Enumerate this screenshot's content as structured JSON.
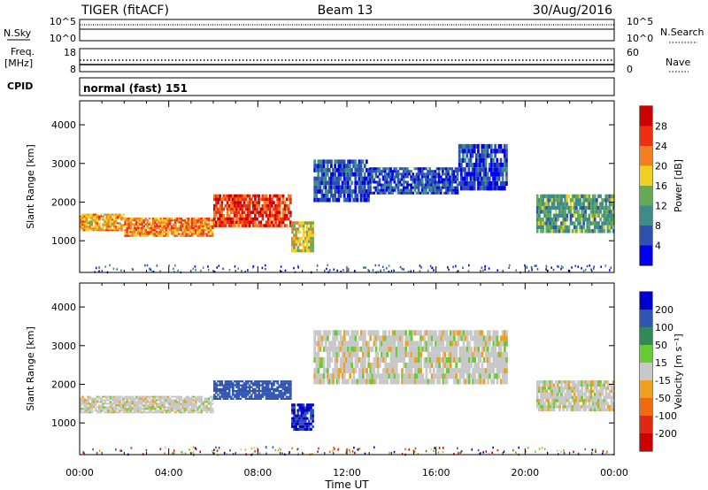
{
  "header": {
    "radar": "TIGER (fitACF)",
    "beam": "Beam 13",
    "date": "30/Aug/2016"
  },
  "strip_labels": {
    "nsky": "N.Sky",
    "nsearch": "N.Search",
    "freq_line1": "Freq.",
    "freq_line2": "[MHz]",
    "nave": "Nave",
    "cpid": "CPID",
    "cpid_value": "normal (fast) 151"
  },
  "noise_axis": {
    "left_ticks": [
      "10^5",
      "10^0"
    ],
    "right_ticks": [
      "10^5",
      "10^0"
    ]
  },
  "freq_axis": {
    "left_ticks": [
      "18",
      "8"
    ],
    "right_ticks": [
      "60",
      "0"
    ]
  },
  "chart_data": [
    {
      "type": "heatmap",
      "panel": "power",
      "ylabel": "Slant Range [km]",
      "xlabel": "",
      "x_ticks": [
        "00:00",
        "04:00",
        "08:00",
        "12:00",
        "16:00",
        "20:00",
        "00:00"
      ],
      "xlim_hours": [
        0,
        24
      ],
      "y_ticks": [
        1000,
        2000,
        3000,
        4000
      ],
      "ylim": [
        180,
        4620
      ],
      "colorbar": {
        "label": "Power [dB]",
        "ticks": [
          4,
          8,
          12,
          16,
          20,
          24,
          28
        ],
        "colors": [
          "#0000ee",
          "#3050b0",
          "#3c8c8c",
          "#66aa55",
          "#f0d020",
          "#f08020",
          "#ee3010",
          "#cc0000"
        ]
      },
      "bands": [
        {
          "from_h": 0.0,
          "to_h": 2.0,
          "range_km": [
            1250,
            1700
          ],
          "value_db": 20
        },
        {
          "from_h": 2.0,
          "to_h": 6.0,
          "range_km": [
            1100,
            1600
          ],
          "value_db": 22
        },
        {
          "from_h": 6.0,
          "to_h": 9.5,
          "range_km": [
            1350,
            2200
          ],
          "value_db": 26
        },
        {
          "from_h": 9.5,
          "to_h": 10.5,
          "range_km": [
            700,
            1500
          ],
          "value_db": 18
        },
        {
          "from_h": 10.5,
          "to_h": 13.0,
          "range_km": [
            2000,
            3100
          ],
          "value_db": 6
        },
        {
          "from_h": 13.0,
          "to_h": 17.0,
          "range_km": [
            2200,
            2900
          ],
          "value_db": 6
        },
        {
          "from_h": 17.0,
          "to_h": 19.2,
          "range_km": [
            2300,
            3500
          ],
          "value_db": 5
        },
        {
          "from_h": 20.5,
          "to_h": 24.0,
          "range_km": [
            1200,
            2200
          ],
          "value_db": 12
        }
      ]
    },
    {
      "type": "heatmap",
      "panel": "velocity",
      "ylabel": "Slant Range [km]",
      "xlabel": "Time UT",
      "x_ticks": [
        "00:00",
        "04:00",
        "08:00",
        "12:00",
        "16:00",
        "20:00",
        "00:00"
      ],
      "xlim_hours": [
        0,
        24
      ],
      "y_ticks": [
        1000,
        2000,
        3000,
        4000
      ],
      "ylim": [
        180,
        4620
      ],
      "colorbar": {
        "label": "Velocity [m s⁻¹]",
        "ticks": [
          200,
          100,
          50,
          15,
          -15,
          -50,
          -100,
          -200
        ],
        "colors": [
          "#0000cc",
          "#3055b0",
          "#2e8a5a",
          "#66cc33",
          "#c8c8c8",
          "#f0a020",
          "#f06a10",
          "#e02a10",
          "#cc0000"
        ]
      },
      "bands": [
        {
          "from_h": 0.0,
          "to_h": 6.0,
          "range_km": [
            1250,
            1700
          ],
          "value_ms": 0
        },
        {
          "from_h": 6.0,
          "to_h": 9.5,
          "range_km": [
            1600,
            2100
          ],
          "value_ms": 180
        },
        {
          "from_h": 9.5,
          "to_h": 10.5,
          "range_km": [
            800,
            1500
          ],
          "value_ms": 200
        },
        {
          "from_h": 10.5,
          "to_h": 19.2,
          "range_km": [
            2000,
            3400
          ],
          "value_ms": 0
        },
        {
          "from_h": 20.5,
          "to_h": 24.0,
          "range_km": [
            1300,
            2100
          ],
          "value_ms": 0
        }
      ]
    }
  ]
}
